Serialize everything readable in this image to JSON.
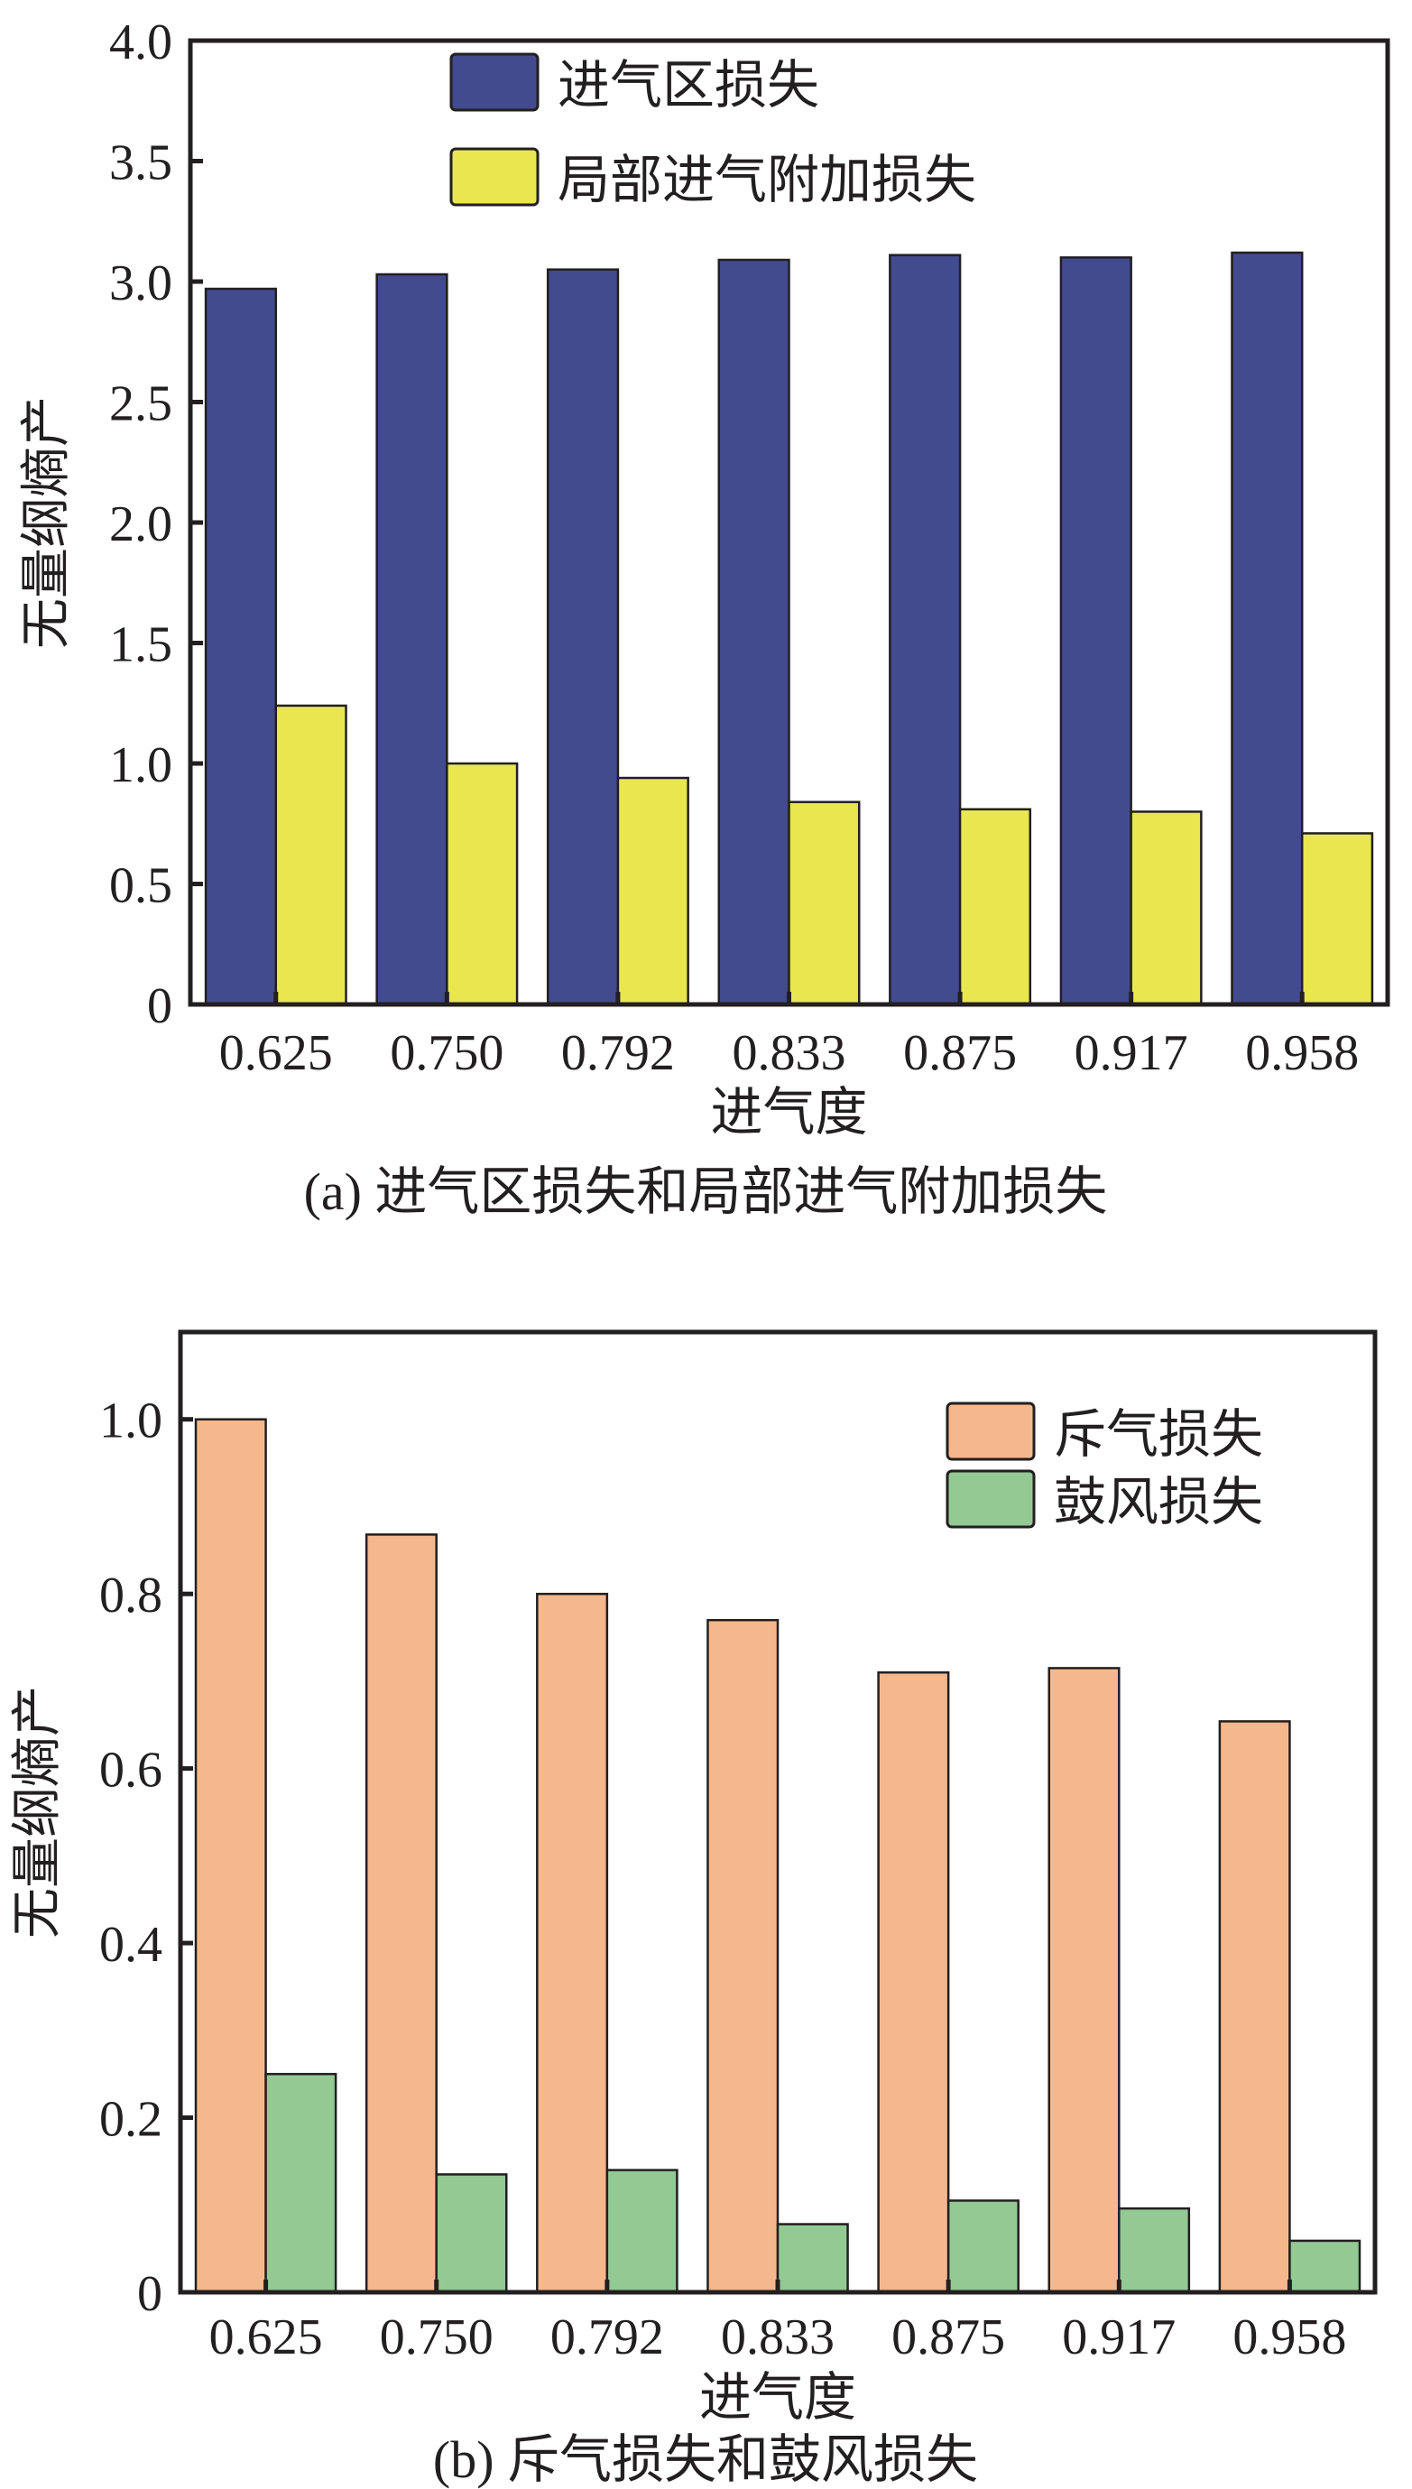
{
  "chart_data": [
    {
      "type": "bar",
      "title": "(a) 进气区损失和局部进气附加损失",
      "xlabel": "进气度",
      "ylabel": "无量纲熵产",
      "categories": [
        "0.625",
        "0.750",
        "0.792",
        "0.833",
        "0.875",
        "0.917",
        "0.958"
      ],
      "ylim": [
        0,
        4.0
      ],
      "yticks": [
        "0",
        "0.5",
        "1.0",
        "1.5",
        "2.0",
        "2.5",
        "3.0",
        "3.5",
        "4.0"
      ],
      "ytick_values": [
        0,
        0.5,
        1.0,
        1.5,
        2.0,
        2.5,
        3.0,
        3.5,
        4.0
      ],
      "legend_position": "top-center",
      "grid": false,
      "series": [
        {
          "name": "进气区损失",
          "color": "#424b8e",
          "values": [
            2.97,
            3.03,
            3.05,
            3.09,
            3.11,
            3.1,
            3.12
          ]
        },
        {
          "name": "局部进气附加损失",
          "color": "#e8e84e",
          "values": [
            1.24,
            1.0,
            0.94,
            0.84,
            0.81,
            0.8,
            0.71
          ]
        }
      ]
    },
    {
      "type": "bar",
      "title": "(b) 斥气损失和鼓风损失",
      "xlabel": "进气度",
      "ylabel": "无量纲熵产",
      "categories": [
        "0.625",
        "0.750",
        "0.792",
        "0.833",
        "0.875",
        "0.917",
        "0.958"
      ],
      "ylim": [
        0,
        1.1
      ],
      "yticks": [
        "0",
        "0.2",
        "0.4",
        "0.6",
        "0.8",
        "1.0"
      ],
      "ytick_values": [
        0,
        0.2,
        0.4,
        0.6,
        0.8,
        1.0
      ],
      "legend_position": "top-right",
      "grid": false,
      "series": [
        {
          "name": "斥气损失",
          "color": "#f5b88c",
          "values": [
            1.0,
            0.868,
            0.8,
            0.77,
            0.71,
            0.715,
            0.654
          ]
        },
        {
          "name": "鼓风损失",
          "color": "#93c993",
          "values": [
            0.25,
            0.135,
            0.14,
            0.078,
            0.105,
            0.096,
            0.059
          ]
        }
      ]
    }
  ]
}
